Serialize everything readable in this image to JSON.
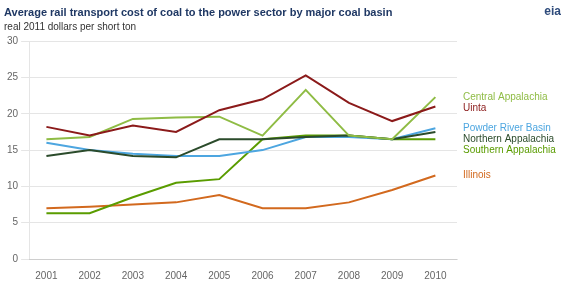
{
  "chart_data": {
    "type": "line",
    "title": "Average rail transport cost of coal to the power sector by major coal basin",
    "subtitle": "real 2011 dollars per short ton",
    "annotations": [
      "eia"
    ],
    "x": [
      2001,
      2002,
      2003,
      2004,
      2005,
      2006,
      2007,
      2008,
      2009,
      2010
    ],
    "series": [
      {
        "name": "Uinta",
        "color": "#8B1A1A",
        "values": [
          18.2,
          17.0,
          18.4,
          17.5,
          20.5,
          22.0,
          25.3,
          21.5,
          19.0,
          21.0
        ]
      },
      {
        "name": "Central Appalachia",
        "color": "#8FBC45",
        "values": [
          16.5,
          16.8,
          19.3,
          19.5,
          19.6,
          17.0,
          23.3,
          17.0,
          16.5,
          22.3
        ]
      },
      {
        "name": "Northern Appalachia",
        "color": "#2B4B2B",
        "values": [
          14.2,
          15.0,
          14.2,
          14.0,
          16.5,
          16.5,
          16.8,
          17.0,
          16.5,
          17.5
        ]
      },
      {
        "name": "Powder River Basin",
        "color": "#4DA6E0",
        "values": [
          16.0,
          15.0,
          14.5,
          14.2,
          14.2,
          15.0,
          16.8,
          16.8,
          16.5,
          18.0
        ]
      },
      {
        "name": "Southern Appalachia",
        "color": "#5A9C00",
        "values": [
          6.3,
          6.3,
          8.5,
          10.5,
          11.0,
          16.5,
          17.0,
          17.0,
          16.5,
          16.5
        ]
      },
      {
        "name": "Illinois",
        "color": "#D2691E",
        "values": [
          7.0,
          7.2,
          7.5,
          7.8,
          8.8,
          7.0,
          7.0,
          7.8,
          9.5,
          11.5
        ]
      }
    ],
    "xlim": [
      2000.6,
      2010.5
    ],
    "xticks": [
      2001,
      2002,
      2003,
      2004,
      2005,
      2006,
      2007,
      2008,
      2009,
      2010
    ],
    "ylim": [
      0,
      30
    ],
    "yticks": [
      0,
      5,
      10,
      15,
      20,
      25,
      30
    ],
    "grid": "y"
  }
}
